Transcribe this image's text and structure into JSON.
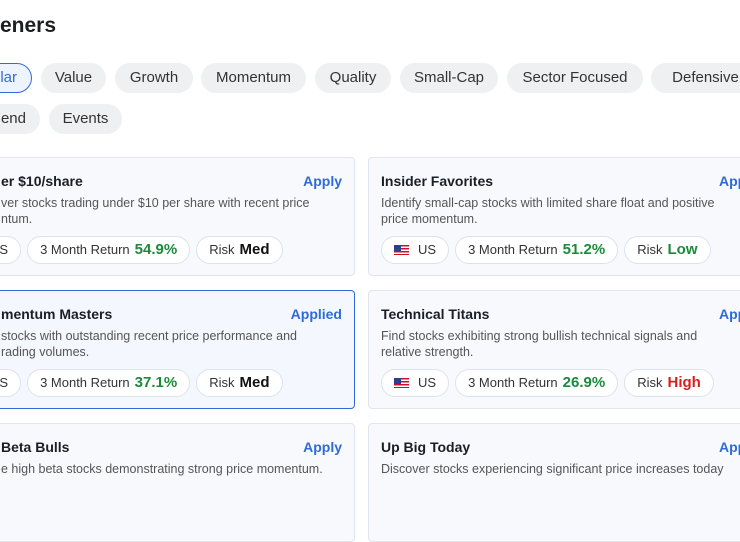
{
  "header": {
    "title": "eners"
  },
  "filters": {
    "items": [
      "lar",
      "Value",
      "Growth",
      "Momentum",
      "Quality",
      "Small-Cap",
      "Sector Focused",
      "Defensive",
      "end",
      "Events"
    ],
    "selected": 0,
    "row_break": 8
  },
  "cards": [
    {
      "title": "er $10/share",
      "action": "Apply",
      "description": [
        "ver stocks trading under $10 per share with recent price",
        "ntum."
      ],
      "region": "US",
      "flag": false,
      "return_label": "3 Month Return",
      "return_value": "54.9%",
      "risk_label": "Risk",
      "risk": "Med",
      "risk_color": "#111111",
      "selected": false
    },
    {
      "title": "Insider Favorites",
      "action": "App",
      "description": [
        "Identify small-cap stocks with limited share float and positive",
        "price momentum."
      ],
      "region": "US",
      "flag": true,
      "return_label": "3 Month Return",
      "return_value": "51.2%",
      "risk_label": "Risk",
      "risk": "Low",
      "risk_color": "#1a8a3a",
      "selected": false
    },
    {
      "title": "mentum Masters",
      "action": "Applied",
      "description": [
        "stocks with outstanding recent price performance and",
        "rading volumes."
      ],
      "region": "US",
      "flag": false,
      "return_label": "3 Month Return",
      "return_value": "37.1%",
      "risk_label": "Risk",
      "risk": "Med",
      "risk_color": "#111111",
      "selected": true
    },
    {
      "title": "Technical Titans",
      "action": "App",
      "description": [
        "Find stocks exhibiting strong bullish technical signals and",
        "relative strength."
      ],
      "region": "US",
      "flag": true,
      "return_label": "3 Month Return",
      "return_value": "26.9%",
      "risk_label": "Risk",
      "risk": "High",
      "risk_color": "#d62020",
      "selected": false
    },
    {
      "title": "Beta Bulls",
      "action": "Apply",
      "description": [
        "e high beta stocks demonstrating strong price momentum."
      ],
      "selected": false
    },
    {
      "title": "Up Big Today",
      "action": "App",
      "description": [
        "Discover stocks experiencing significant price increases today"
      ],
      "selected": false
    }
  ]
}
